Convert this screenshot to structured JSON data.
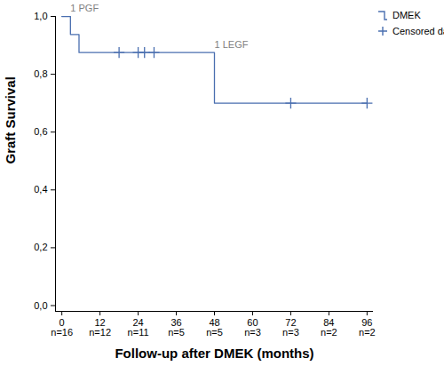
{
  "chart_data": {
    "type": "line",
    "x_label": "Follow-up after DMEK (months)",
    "y_label": "Graft Survival",
    "series": [
      {
        "name": "DMEK",
        "color": "#4a6fb0",
        "line_style": "step",
        "x": [
          0,
          2.7,
          5.4,
          48,
          96
        ],
        "values": [
          1.0,
          0.9375,
          0.875,
          0.7,
          0.7
        ]
      },
      {
        "name": "Censored data",
        "type": "scatter",
        "marker": "plus",
        "color": "#4a6fb0",
        "x": [
          18,
          24,
          26,
          29,
          72,
          96
        ],
        "values": [
          0.875,
          0.875,
          0.875,
          0.875,
          0.7,
          0.7
        ]
      }
    ],
    "xlim": [
      -2,
      98
    ],
    "xticks": [
      0,
      12,
      24,
      36,
      48,
      60,
      72,
      84,
      96
    ],
    "numbers_at_risk": [
      "n=16",
      "n=12",
      "n=11",
      "n=5",
      "n=5",
      "n=3",
      "n=3",
      "n=2",
      "n=2"
    ],
    "ylim": [
      -0.02,
      1.0
    ],
    "yticks": [
      {
        "value": 0,
        "label": "0,0"
      },
      {
        "value": 0.2,
        "label": "0,2"
      },
      {
        "value": 0.4,
        "label": "0,4"
      },
      {
        "value": 0.6,
        "label": "0,6"
      },
      {
        "value": 0.8,
        "label": "0,8"
      },
      {
        "value": 1.0,
        "label": "1,0"
      }
    ],
    "annotations": [
      {
        "text": "1 PGF",
        "x": 2.7,
        "y": 1.0
      },
      {
        "text": "1 LEGF",
        "x": 48,
        "y": 0.875
      }
    ],
    "legend": "right"
  }
}
